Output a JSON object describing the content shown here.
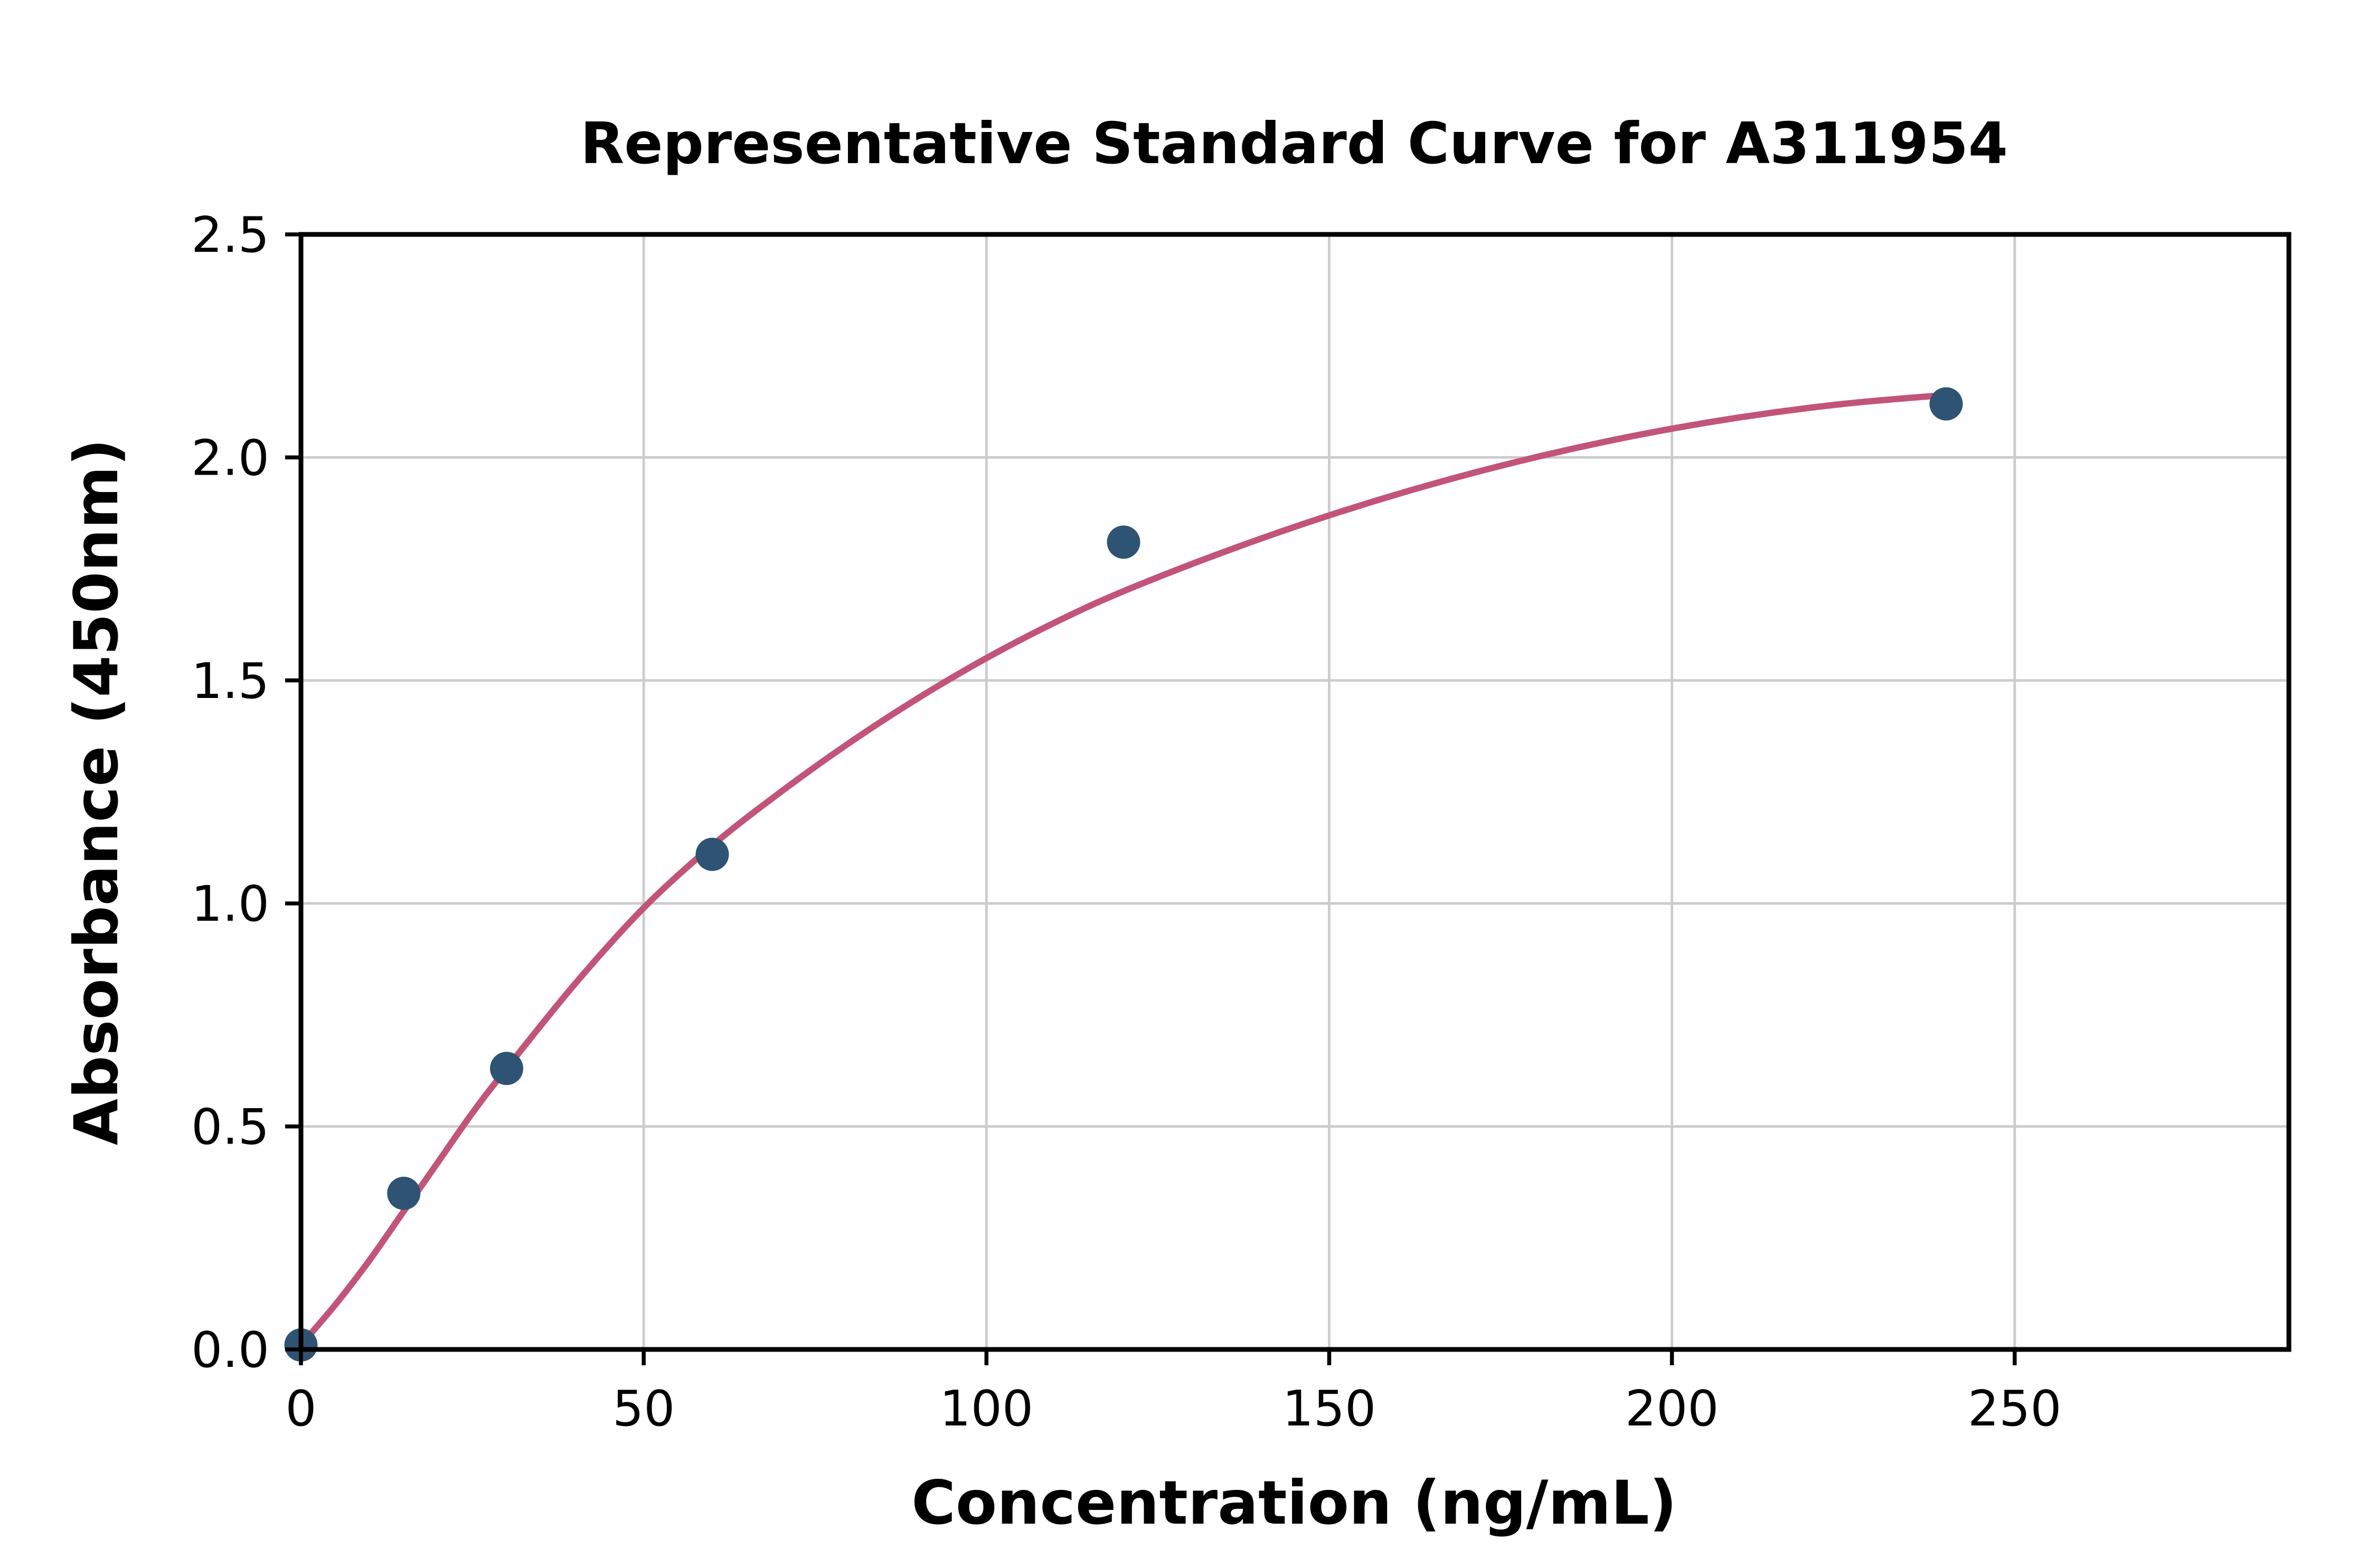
{
  "chart_data": {
    "type": "scatter",
    "title": "Representative Standard Curve for A311954",
    "xlabel": "Concentration (ng/mL)",
    "ylabel": "Absorbance (450nm)",
    "xlim": [
      0,
      290
    ],
    "ylim": [
      0,
      2.5
    ],
    "grid": true,
    "legend": "none",
    "xticks": [
      0,
      50,
      100,
      150,
      200,
      250
    ],
    "xtick_labels": [
      "0",
      "50",
      "100",
      "150",
      "200",
      "250"
    ],
    "yticks": [
      0.0,
      0.5,
      1.0,
      1.5,
      2.0,
      2.5
    ],
    "ytick_labels": [
      "0.0",
      "0.5",
      "1.0",
      "1.5",
      "2.0",
      "2.5"
    ],
    "colors": {
      "points": "#2F5373",
      "fit_line": "#C25577",
      "grid": "#CCCCCC",
      "axis": "#000000",
      "background": "#FFFFFF"
    },
    "series": [
      {
        "name": "standard-points",
        "kind": "scatter",
        "points": [
          [
            0,
            0.01
          ],
          [
            15,
            0.35
          ],
          [
            30,
            0.63
          ],
          [
            60,
            1.11
          ],
          [
            120,
            1.81
          ],
          [
            240,
            2.12
          ]
        ]
      },
      {
        "name": "fitted-curve",
        "kind": "line",
        "points": [
          [
            0,
            0.01
          ],
          [
            5,
            0.1
          ],
          [
            10,
            0.2
          ],
          [
            15,
            0.31
          ],
          [
            20,
            0.42
          ],
          [
            25,
            0.53
          ],
          [
            30,
            0.63
          ],
          [
            40,
            0.82
          ],
          [
            50,
            0.99
          ],
          [
            60,
            1.13
          ],
          [
            70,
            1.25
          ],
          [
            80,
            1.36
          ],
          [
            90,
            1.46
          ],
          [
            100,
            1.55
          ],
          [
            110,
            1.63
          ],
          [
            120,
            1.7
          ],
          [
            135,
            1.79
          ],
          [
            150,
            1.87
          ],
          [
            165,
            1.94
          ],
          [
            180,
            2.0
          ],
          [
            195,
            2.05
          ],
          [
            210,
            2.09
          ],
          [
            225,
            2.12
          ],
          [
            240,
            2.14
          ]
        ]
      }
    ]
  }
}
